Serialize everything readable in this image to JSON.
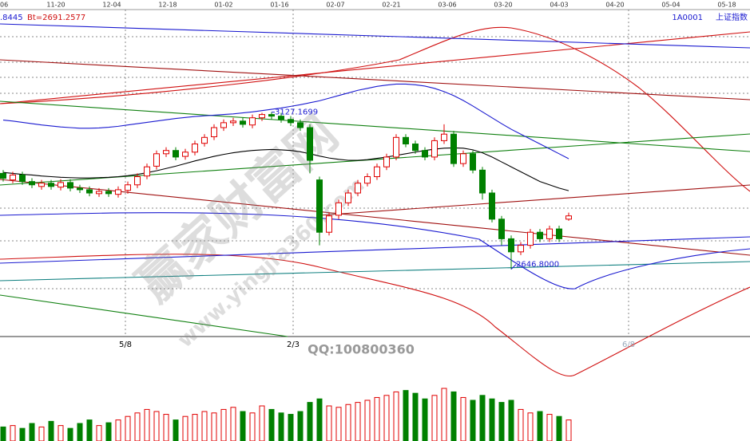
{
  "chart_data": {
    "type": "candlestick",
    "header": {
      "left_value": ".8445",
      "bt": "Bt=2691.2577",
      "symbol": "1A0001",
      "name": "上证指数"
    },
    "date_labels": [
      "06",
      "11-20",
      "12-04",
      "12-18",
      "01-02",
      "01-16",
      "02-07",
      "02-21",
      "03-06",
      "03-20",
      "04-03",
      "04-20",
      "05-04",
      "05-18"
    ],
    "marker_labels": [
      "5/8",
      "2/3",
      "6/8"
    ],
    "watermark": {
      "site": "赢家财富网",
      "url": "www.yingjia360.com",
      "qq": "QQ:100800360"
    },
    "high_label": "3127.1699",
    "low_label": "2646.8000",
    "ylim": [
      2441,
      3441
    ],
    "open": [
      2940,
      2920,
      2935,
      2915,
      2900,
      2910,
      2898,
      2912,
      2895,
      2890,
      2878,
      2885,
      2876,
      2888,
      2905,
      2932,
      2962,
      3000,
      3010,
      2992,
      3005,
      3032,
      3052,
      3080,
      3095,
      3100,
      3088,
      3110,
      3120,
      3115,
      3105,
      3095,
      3080,
      2920,
      2760,
      2812,
      2850,
      2880,
      2910,
      2930,
      2960,
      2990,
      3050,
      3030,
      3010,
      2990,
      3040,
      3060,
      2970,
      3000,
      2950,
      2880,
      2800,
      2740,
      2700,
      2720,
      2760,
      2740,
      2770,
      2800
    ],
    "high": [
      2950,
      2945,
      2945,
      2925,
      2920,
      2920,
      2922,
      2922,
      2905,
      2900,
      2895,
      2895,
      2900,
      2915,
      2940,
      2970,
      3010,
      3020,
      3020,
      3015,
      3040,
      3060,
      3090,
      3105,
      3110,
      3110,
      3120,
      3125,
      3127.1699,
      3125,
      3115,
      3105,
      3090,
      2930,
      2820,
      2860,
      2890,
      2920,
      2940,
      2970,
      3000,
      3060,
      3060,
      3040,
      3020,
      3050,
      3090,
      3070,
      3010,
      3010,
      2960,
      2890,
      2810,
      2750,
      2730,
      2770,
      2770,
      2780,
      2780,
      2820
    ],
    "low": [
      2915,
      2910,
      2905,
      2895,
      2890,
      2890,
      2888,
      2885,
      2880,
      2870,
      2868,
      2868,
      2866,
      2878,
      2895,
      2922,
      2952,
      2990,
      2980,
      2982,
      2995,
      3022,
      3042,
      3070,
      3085,
      3080,
      3078,
      3100,
      3105,
      3095,
      3085,
      3070,
      2940,
      2720,
      2750,
      2800,
      2840,
      2870,
      2900,
      2920,
      2950,
      2980,
      3020,
      3000,
      2980,
      2980,
      3030,
      2960,
      2960,
      2940,
      2860,
      2790,
      2720,
      2646.8,
      2690,
      2710,
      2730,
      2730,
      2730,
      2795
    ],
    "close": [
      2925,
      2935,
      2915,
      2905,
      2910,
      2900,
      2912,
      2895,
      2890,
      2880,
      2885,
      2878,
      2890,
      2905,
      2930,
      2960,
      3000,
      3010,
      2990,
      3005,
      3030,
      3050,
      3080,
      3095,
      3100,
      3090,
      3110,
      3120,
      3115,
      3105,
      3095,
      3080,
      2980,
      2760,
      2810,
      2850,
      2880,
      2910,
      2930,
      2960,
      2990,
      3050,
      3030,
      3010,
      2990,
      3040,
      3060,
      2970,
      3000,
      2950,
      2880,
      2800,
      2740,
      2700,
      2720,
      2760,
      2740,
      2770,
      2740,
      2810
    ],
    "series": [
      {
        "color": "#000000",
        "values": [
          2943,
          2940,
          2937,
          2935,
          2932,
          2930,
          2928,
          2927,
          2926,
          2926,
          2927,
          2928,
          2930,
          2933,
          2937,
          2942,
          2948,
          2955,
          2962,
          2970,
          2978,
          2985,
          2992,
          2998,
          3003,
          3007,
          3010,
          3012,
          3013,
          3012,
          3010,
          3006,
          3000,
          2993,
          2987,
          2983,
          2980,
          2980,
          2982,
          2986,
          2990,
          2995,
          3000,
          3005,
          3010,
          3014,
          3017,
          3018,
          3017,
          3012,
          3003,
          2990,
          2975,
          2960,
          2945,
          2930,
          2915,
          2905,
          2895,
          2887
        ]
      },
      {
        "color": "#1a1ad0",
        "values": [
          3103,
          3100,
          3096,
          3092,
          3088,
          3085,
          3082,
          3080,
          3078,
          3078,
          3079,
          3081,
          3084,
          3088,
          3092,
          3096,
          3100,
          3104,
          3108,
          3111,
          3114,
          3116,
          3118,
          3120,
          3122,
          3125,
          3128,
          3132,
          3136,
          3140,
          3145,
          3150,
          3156,
          3162,
          3170,
          3178,
          3186,
          3194,
          3200,
          3206,
          3210,
          3213,
          3213,
          3211,
          3207,
          3200,
          3190,
          3178,
          3163,
          3146,
          3128,
          3110,
          3092,
          3075,
          3060,
          3045,
          3030,
          3015,
          3000,
          2985
        ]
      }
    ],
    "volume": [
      20,
      22,
      18,
      25,
      20,
      28,
      22,
      18,
      25,
      30,
      22,
      26,
      30,
      35,
      40,
      45,
      42,
      38,
      30,
      35,
      38,
      42,
      40,
      45,
      48,
      42,
      40,
      50,
      45,
      40,
      38,
      42,
      55,
      60,
      50,
      48,
      52,
      55,
      58,
      62,
      65,
      70,
      72,
      68,
      60,
      65,
      75,
      70,
      62,
      58,
      65,
      60,
      55,
      58,
      45,
      40,
      42,
      38,
      35,
      30
    ],
    "volume_ylim": [
      0,
      100
    ],
    "up_color": "#e00000",
    "down_color": "#008000"
  }
}
